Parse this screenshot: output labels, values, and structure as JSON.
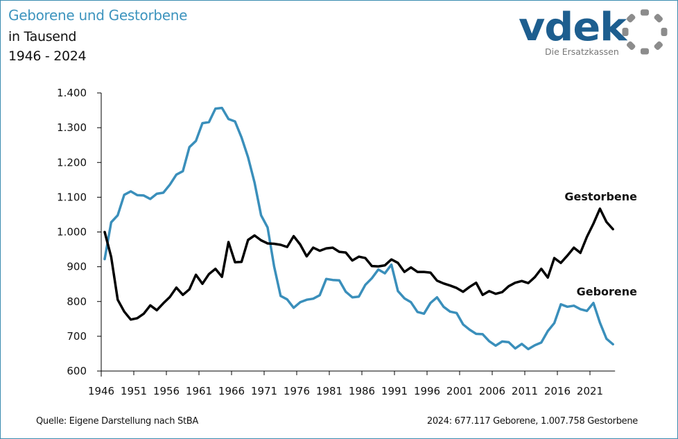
{
  "header": {
    "title": "Geborene und Gestorbene",
    "subtitle": "in Tausend",
    "range": "1946 - 2024"
  },
  "logo": {
    "brand": "vdek",
    "tagline": "Die Ersatzkassen",
    "brand_color": "#1d5e8f",
    "ring_color": "#8c8c8c"
  },
  "footer": {
    "source": "Quelle: Eigene Darstellung nach StBA",
    "note": "2024: 677.117 Geborene, 1.007.758 Gestorbene"
  },
  "chart_data": {
    "type": "line",
    "title": "Geborene und Gestorbene",
    "subtitle": "in Tausend",
    "xlabel": "",
    "ylabel": "",
    "x": [
      1946,
      1947,
      1948,
      1949,
      1950,
      1951,
      1952,
      1953,
      1954,
      1955,
      1956,
      1957,
      1958,
      1959,
      1960,
      1961,
      1962,
      1963,
      1964,
      1965,
      1966,
      1967,
      1968,
      1969,
      1970,
      1971,
      1972,
      1973,
      1974,
      1975,
      1976,
      1977,
      1978,
      1979,
      1980,
      1981,
      1982,
      1983,
      1984,
      1985,
      1986,
      1987,
      1988,
      1989,
      1990,
      1991,
      1992,
      1993,
      1994,
      1995,
      1996,
      1997,
      1998,
      1999,
      2000,
      2001,
      2002,
      2003,
      2004,
      2005,
      2006,
      2007,
      2008,
      2009,
      2010,
      2011,
      2012,
      2013,
      2014,
      2015,
      2016,
      2017,
      2018,
      2019,
      2020,
      2021,
      2022,
      2023,
      2024
    ],
    "xticks": [
      "1946",
      "1951",
      "1956",
      "1961",
      "1966",
      "1971",
      "1976",
      "1981",
      "1986",
      "1991",
      "1996",
      "2001",
      "2006",
      "2011",
      "2016",
      "2021"
    ],
    "yticks": [
      "600",
      "700",
      "800",
      "900",
      "1.000",
      "1.100",
      "1.200",
      "1.300",
      "1.400"
    ],
    "ylim": [
      600,
      1400
    ],
    "grid": false,
    "legend": "inline labels at line ends (right)",
    "series": [
      {
        "name": "Geborene",
        "color": "#3a8fbb",
        "values": [
          922,
          1028,
          1048,
          1107,
          1117,
          1106,
          1105,
          1095,
          1110,
          1113,
          1136,
          1165,
          1175,
          1244,
          1262,
          1313,
          1316,
          1355,
          1357,
          1325,
          1318,
          1272,
          1215,
          1142,
          1048,
          1013,
          901,
          816,
          806,
          782,
          798,
          805,
          808,
          818,
          865,
          862,
          861,
          828,
          812,
          814,
          848,
          867,
          892,
          881,
          906,
          830,
          809,
          798,
          770,
          765,
          796,
          812,
          785,
          771,
          767,
          734,
          719,
          707,
          706,
          686,
          673,
          685,
          683,
          665,
          678,
          663,
          674,
          682,
          715,
          738,
          792,
          785,
          788,
          778,
          773,
          796,
          739,
          693,
          677
        ]
      },
      {
        "name": "Gestorbene",
        "color": "#000000",
        "values": [
          1000,
          928,
          805,
          771,
          748,
          752,
          765,
          789,
          775,
          795,
          813,
          840,
          819,
          835,
          877,
          851,
          879,
          894,
          871,
          971,
          913,
          914,
          977,
          990,
          976,
          967,
          966,
          963,
          957,
          988,
          964,
          930,
          955,
          946,
          953,
          955,
          943,
          941,
          918,
          929,
          925,
          902,
          901,
          904,
          921,
          911,
          885,
          898,
          885,
          885,
          883,
          860,
          852,
          846,
          839,
          828,
          842,
          854,
          819,
          830,
          822,
          827,
          844,
          854,
          859,
          853,
          870,
          894,
          869,
          925,
          911,
          932,
          955,
          940,
          986,
          1024,
          1067,
          1029,
          1008
        ]
      }
    ],
    "annotations": [
      {
        "text": "Gestorbene",
        "series": "Gestorbene"
      },
      {
        "text": "Geborene",
        "series": "Geborene"
      }
    ]
  }
}
